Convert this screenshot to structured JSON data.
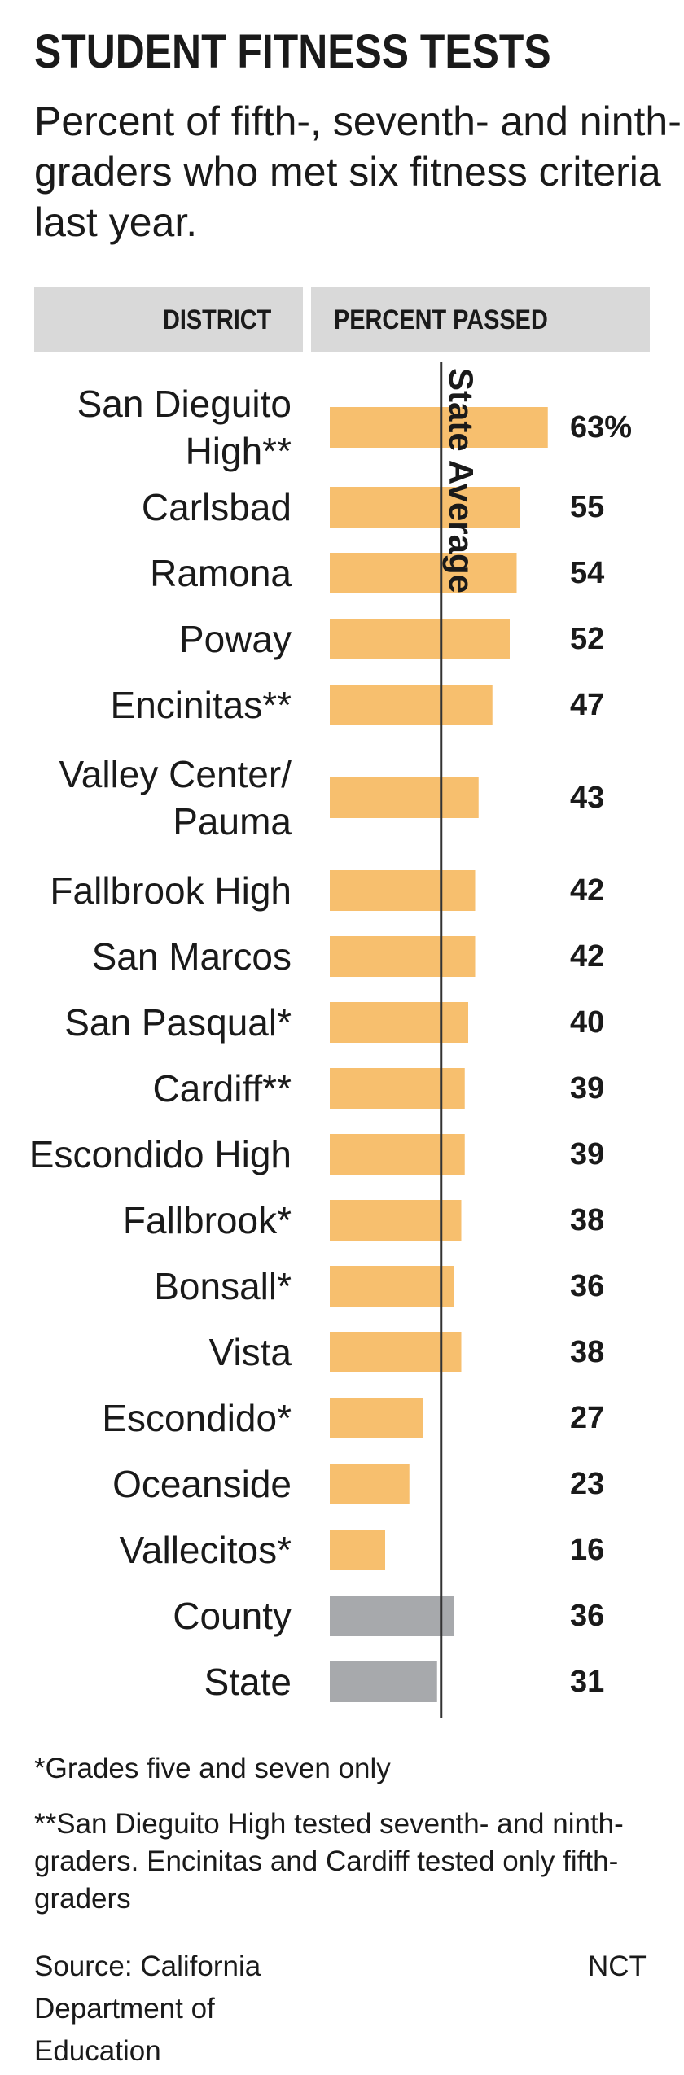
{
  "header": {
    "title": "STUDENT FITNESS TESTS",
    "subtitle": "Percent of fifth-, seventh- and ninth-graders who met six fitness criteria last year."
  },
  "columns": {
    "district": "DISTRICT",
    "percent": "PERCENT PASSED"
  },
  "notes": {
    "footnote1": "*Grades five and seven only",
    "footnote2": "**San Dieguito High tested seventh- and ninth-graders. Encinitas and Cardiff tested only fifth-graders",
    "source": "Source: California Department of Education",
    "credit": "NCT"
  },
  "colors": {
    "district_bar": "#f7bf6e",
    "summary_bar": "#a7a9ac",
    "reference_line": "#333333",
    "header_bg": "#d9d9d9"
  },
  "chart_data": {
    "type": "bar",
    "orientation": "horizontal",
    "xlim": [
      0,
      100
    ],
    "reference_line": {
      "label": "State Average",
      "value": 31
    },
    "categories": [
      [
        "San Dieguito",
        "High**"
      ],
      [
        "Carlsbad"
      ],
      [
        "Ramona"
      ],
      [
        "Poway"
      ],
      [
        "Encinitas**"
      ],
      [
        "Valley Center/",
        "Pauma"
      ],
      [
        "Fallbrook High"
      ],
      [
        "San Marcos"
      ],
      [
        "San Pasqual*"
      ],
      [
        "Cardiff**"
      ],
      [
        "Escondido High"
      ],
      [
        "Fallbrook*"
      ],
      [
        "Bonsall*"
      ],
      [
        "Vista"
      ],
      [
        "Escondido*"
      ],
      [
        "Oceanside"
      ],
      [
        "Vallecitos*"
      ],
      [
        "County"
      ],
      [
        "State"
      ]
    ],
    "values": [
      63,
      55,
      54,
      52,
      47,
      43,
      42,
      42,
      40,
      39,
      39,
      38,
      36,
      38,
      27,
      23,
      16,
      36,
      31
    ],
    "value_labels": [
      "63%",
      "55",
      "54",
      "52",
      "47",
      "43",
      "42",
      "42",
      "40",
      "39",
      "39",
      "38",
      "36",
      "38",
      "27",
      "23",
      "16",
      "36",
      "31"
    ],
    "group": [
      "district",
      "district",
      "district",
      "district",
      "district",
      "district",
      "district",
      "district",
      "district",
      "district",
      "district",
      "district",
      "district",
      "district",
      "district",
      "district",
      "district",
      "summary",
      "summary"
    ]
  }
}
